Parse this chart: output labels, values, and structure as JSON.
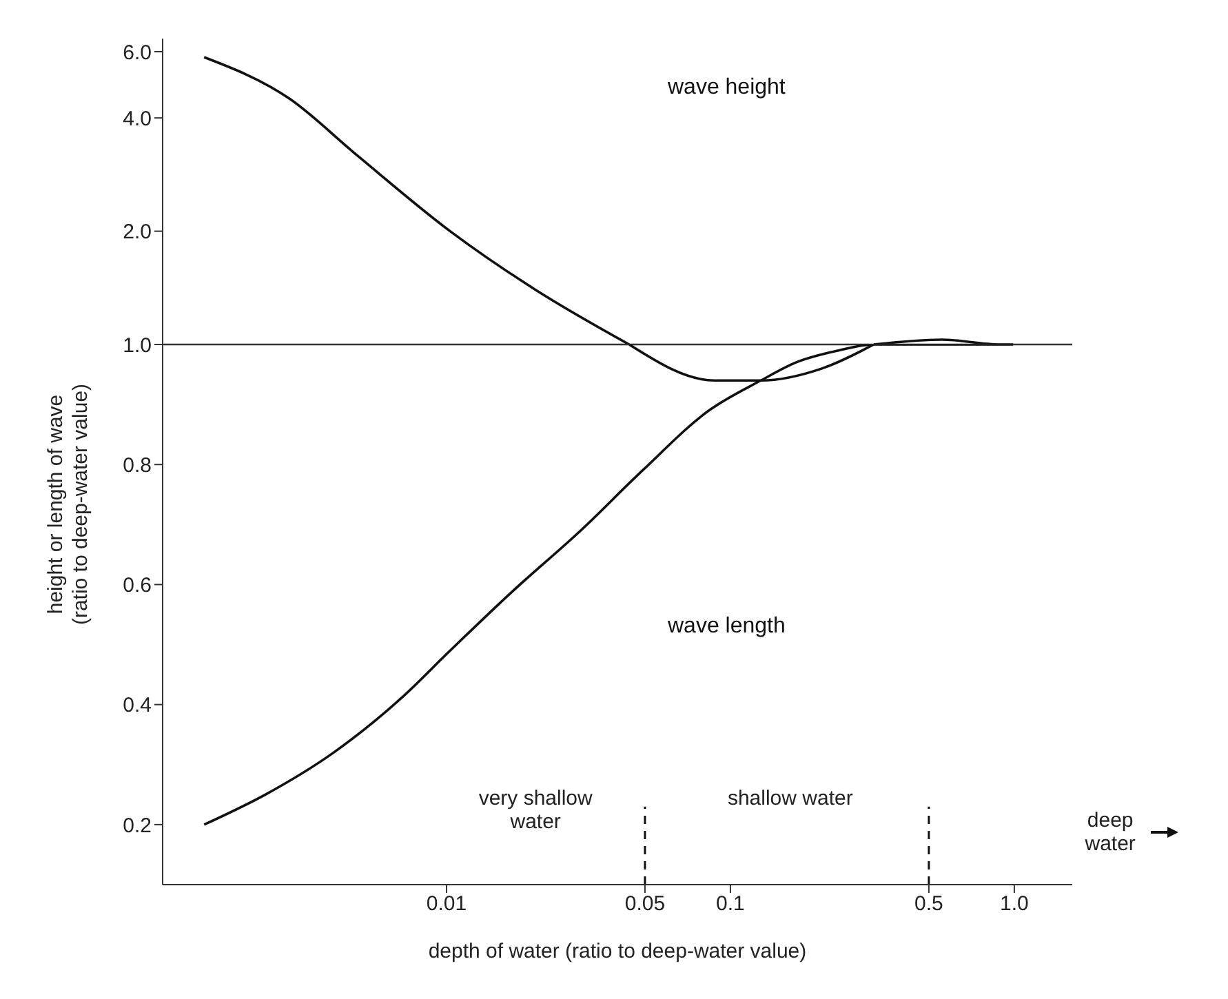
{
  "chart_data": [
    {
      "type": "line",
      "log": "xy",
      "xlim": [
        0.001,
        1.6
      ],
      "ylim": [
        1,
        6.5
      ],
      "yticks": [
        {
          "value": 2,
          "label": "2.0"
        },
        {
          "value": 4,
          "label": "4.0"
        },
        {
          "value": 6,
          "label": "6.0"
        }
      ],
      "tick_labels": "y",
      "marker": "none",
      "line_style": "solid",
      "series": [
        {
          "name": "wave height",
          "color": "#111111",
          "x": [
            0.0014,
            0.0028,
            0.0048,
            0.0103,
            0.0205,
            0.044,
            0.1,
            0.32,
            0.556,
            0.89,
            0.99
          ],
          "values": [
            5.8,
            4.5,
            3.2,
            2.0,
            1.4,
            1.0,
            null,
            1.0,
            1.03,
            1.0,
            1.0
          ]
        }
      ]
    },
    {
      "type": "line",
      "xlabel": "depth of water (ratio to deep-water value)",
      "ylabel": "height or length of wave\n(ratio to deep-water value)",
      "log": "x",
      "xlim": [
        0.001,
        1.6
      ],
      "xticks": [
        0.01,
        0.05,
        0.1,
        0.5,
        {
          "value": 1,
          "label": "1.0"
        }
      ],
      "ylim": [
        0.1,
        1
      ],
      "yticks": [
        0.2,
        0.4,
        0.6,
        0.8,
        {
          "value": 1,
          "label": "1.0"
        }
      ],
      "marker": "none",
      "line_style": "solid",
      "series": [
        {
          "color": "#111111",
          "x": [
            0.044,
            0.088,
            0.109,
            0.128,
            0.21,
            0.32
          ],
          "values": [
            1.0,
            0.94,
            0.94,
            0.94,
            0.96,
            1.0
          ]
        },
        {
          "name": "wave length",
          "color": "#111111",
          "x": [
            0.0014,
            0.0023,
            0.004,
            0.0069,
            0.0103,
            0.0172,
            0.0297,
            0.049,
            0.084,
            0.128,
            0.17,
            0.24,
            0.32,
            0.7,
            0.99
          ],
          "values": [
            0.2,
            0.25,
            0.32,
            0.41,
            0.49,
            0.59,
            0.69,
            0.79,
            0.89,
            0.94,
            0.97,
            0.99,
            1.0,
            1.0,
            1.0
          ]
        }
      ],
      "ref_lines": [
        {
          "axis": "x",
          "value": 0.05,
          "color": "#111111",
          "line_style": "dashed"
        },
        {
          "axis": "x",
          "value": 0.5,
          "color": "#111111",
          "line_style": "dashed"
        }
      ],
      "annotations": [
        "very shallow water",
        "shallow water",
        "deep water"
      ]
    }
  ]
}
